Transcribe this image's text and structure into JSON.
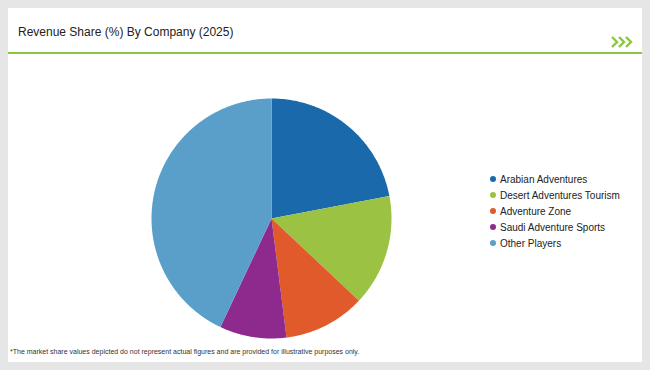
{
  "chart_data": {
    "type": "pie",
    "title": "Revenue Share (%) By Company (2025)",
    "categories": [
      "Arabian Adventures",
      "Desert Adventures Tourism",
      "Adventure Zone",
      "Saudi Adventure Sports",
      "Other Players"
    ],
    "values": [
      22,
      15,
      11,
      9,
      43
    ],
    "colors": [
      "#1a6aab",
      "#9bc242",
      "#e05a2b",
      "#8e2a8e",
      "#5a9fc9"
    ],
    "legend": "right",
    "caption": "*The market share values depicted do not represent actual figures and are provided for illustrative purposes only."
  }
}
